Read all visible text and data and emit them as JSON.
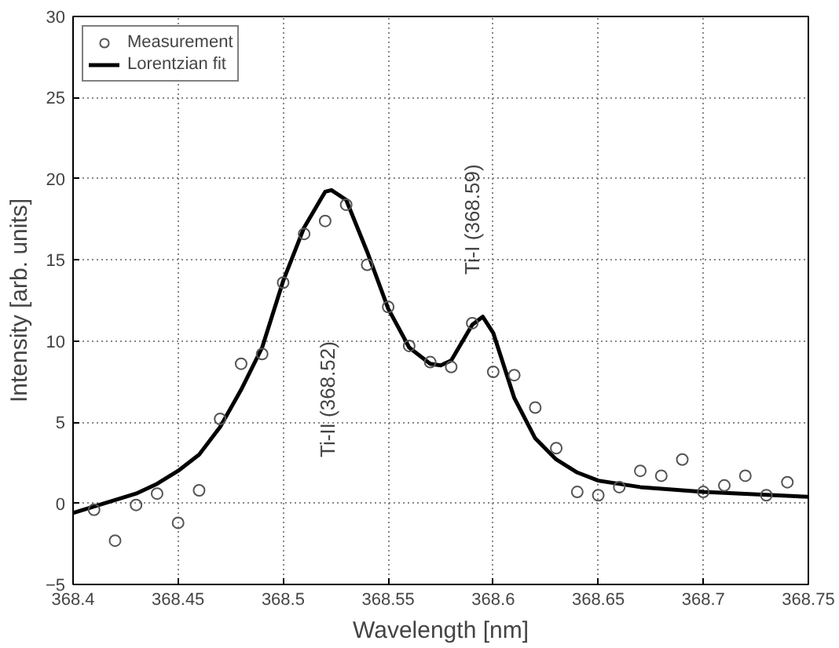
{
  "chart_data": {
    "type": "scatter",
    "xlabel": "Wavelength [nm]",
    "ylabel": "Intensity [arb. units]",
    "xlim": [
      368.4,
      368.75
    ],
    "ylim": [
      -5,
      30
    ],
    "xticks": [
      368.4,
      368.45,
      368.5,
      368.55,
      368.6,
      368.65,
      368.7,
      368.75
    ],
    "yticks": [
      -5,
      0,
      5,
      10,
      15,
      20,
      25,
      30
    ],
    "grid": true,
    "legend": "top left",
    "series": [
      {
        "name": "Measurement",
        "marker": "circle",
        "color": "#555555",
        "x": [
          368.41,
          368.42,
          368.43,
          368.44,
          368.45,
          368.46,
          368.47,
          368.48,
          368.49,
          368.5,
          368.51,
          368.52,
          368.53,
          368.54,
          368.55,
          368.56,
          368.57,
          368.58,
          368.59,
          368.6,
          368.61,
          368.62,
          368.63,
          368.64,
          368.65,
          368.66,
          368.67,
          368.68,
          368.69,
          368.7,
          368.71,
          368.72,
          368.73,
          368.74
        ],
        "values": [
          -0.4,
          -2.3,
          -0.1,
          0.6,
          -1.2,
          0.8,
          5.2,
          8.6,
          9.2,
          13.6,
          16.6,
          17.4,
          18.4,
          14.7,
          12.1,
          9.7,
          8.7,
          8.4,
          11.1,
          8.1,
          7.9,
          5.9,
          3.4,
          0.7,
          0.5,
          1.0,
          2.0,
          1.7,
          2.7,
          0.7,
          1.1,
          1.7,
          0.5,
          1.3
        ]
      },
      {
        "name": "Lorentzian fit",
        "type": "line",
        "marker": "none",
        "line_style": "solid",
        "color": "#000000",
        "x": [
          368.4,
          368.41,
          368.42,
          368.43,
          368.44,
          368.45,
          368.46,
          368.47,
          368.48,
          368.49,
          368.5,
          368.51,
          368.52,
          368.523,
          368.53,
          368.54,
          368.55,
          368.56,
          368.57,
          368.575,
          368.58,
          368.59,
          368.595,
          368.6,
          368.61,
          368.62,
          368.63,
          368.64,
          368.65,
          368.67,
          368.7,
          368.75
        ],
        "values": [
          -0.6,
          -0.2,
          0.2,
          0.6,
          1.2,
          2.0,
          3.0,
          4.7,
          7.0,
          9.6,
          13.7,
          17.0,
          19.2,
          19.3,
          18.7,
          15.5,
          12.0,
          9.6,
          8.6,
          8.5,
          8.8,
          11.0,
          11.5,
          10.5,
          6.5,
          4.0,
          2.7,
          1.9,
          1.4,
          1.0,
          0.7,
          0.4
        ]
      }
    ],
    "annotations": [
      "Ti-II (368.52)",
      {
        "text": "Ti-I (368.59)",
        "x": 368.59,
        "y": 11.0
      }
    ]
  }
}
